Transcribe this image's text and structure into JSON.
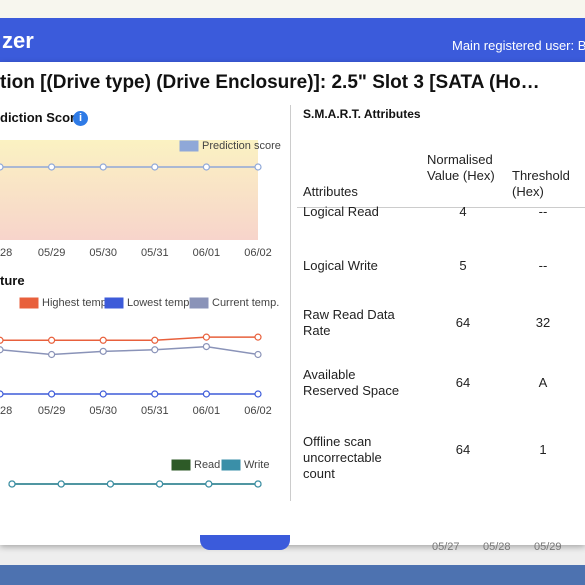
{
  "header": {
    "brand": "zer",
    "user": "Main registered user: B"
  },
  "dialog_title": "tion [(Drive type) (Drive Enclosure)]: 2.5\" Slot 3 [SATA (Ho…",
  "prediction_chart": {
    "title": "diction Score",
    "x": [
      "28",
      "05/29",
      "05/30",
      "05/31",
      "06/01",
      "06/02"
    ],
    "ylim": [
      0,
      100
    ],
    "series": [
      {
        "name": "Prediction score",
        "color": "#8fa8d8",
        "values": [
          73,
          73,
          73,
          73,
          73,
          73
        ]
      }
    ]
  },
  "temperature_chart": {
    "title": "ture",
    "x": [
      "28",
      "05/29",
      "05/30",
      "05/31",
      "06/01",
      "06/02"
    ],
    "ylim": [
      0,
      50
    ],
    "series": [
      {
        "name": "Highest temp.",
        "color": "#e8603c",
        "values": [
          34,
          34,
          34,
          34,
          36,
          36
        ]
      },
      {
        "name": "Lowest temp.",
        "color": "#3d5bd9",
        "values": [
          0,
          0,
          0,
          0,
          0,
          0
        ]
      },
      {
        "name": "Current temp.",
        "color": "#8a93b8",
        "values": [
          28,
          25,
          27,
          28,
          30,
          25
        ]
      }
    ]
  },
  "io_chart": {
    "ylim": [
      0,
      50
    ],
    "series": [
      {
        "name": "Read",
        "color": "#2d5a27",
        "values": [
          0,
          0,
          0,
          0,
          0,
          0
        ]
      },
      {
        "name": "Write",
        "color": "#3a8fa8",
        "values": [
          0,
          0,
          0,
          0,
          0,
          0
        ]
      }
    ]
  },
  "smart": {
    "title": "S.M.A.R.T. Attributes",
    "columns": [
      "Attributes",
      "Normalised Value (Hex)",
      "Threshold (Hex)"
    ],
    "rows": [
      [
        "Logical Read",
        "4",
        "--"
      ],
      [
        "Logical Write",
        "5",
        "--"
      ],
      [
        "Raw Read Data Rate",
        "64",
        "32"
      ],
      [
        "Available Reserved Space",
        "64",
        "A"
      ],
      [
        "Offline scan uncorrectable count",
        "64",
        "1"
      ]
    ]
  },
  "background_dates": [
    "05/27",
    "05/28",
    "05/29"
  ]
}
